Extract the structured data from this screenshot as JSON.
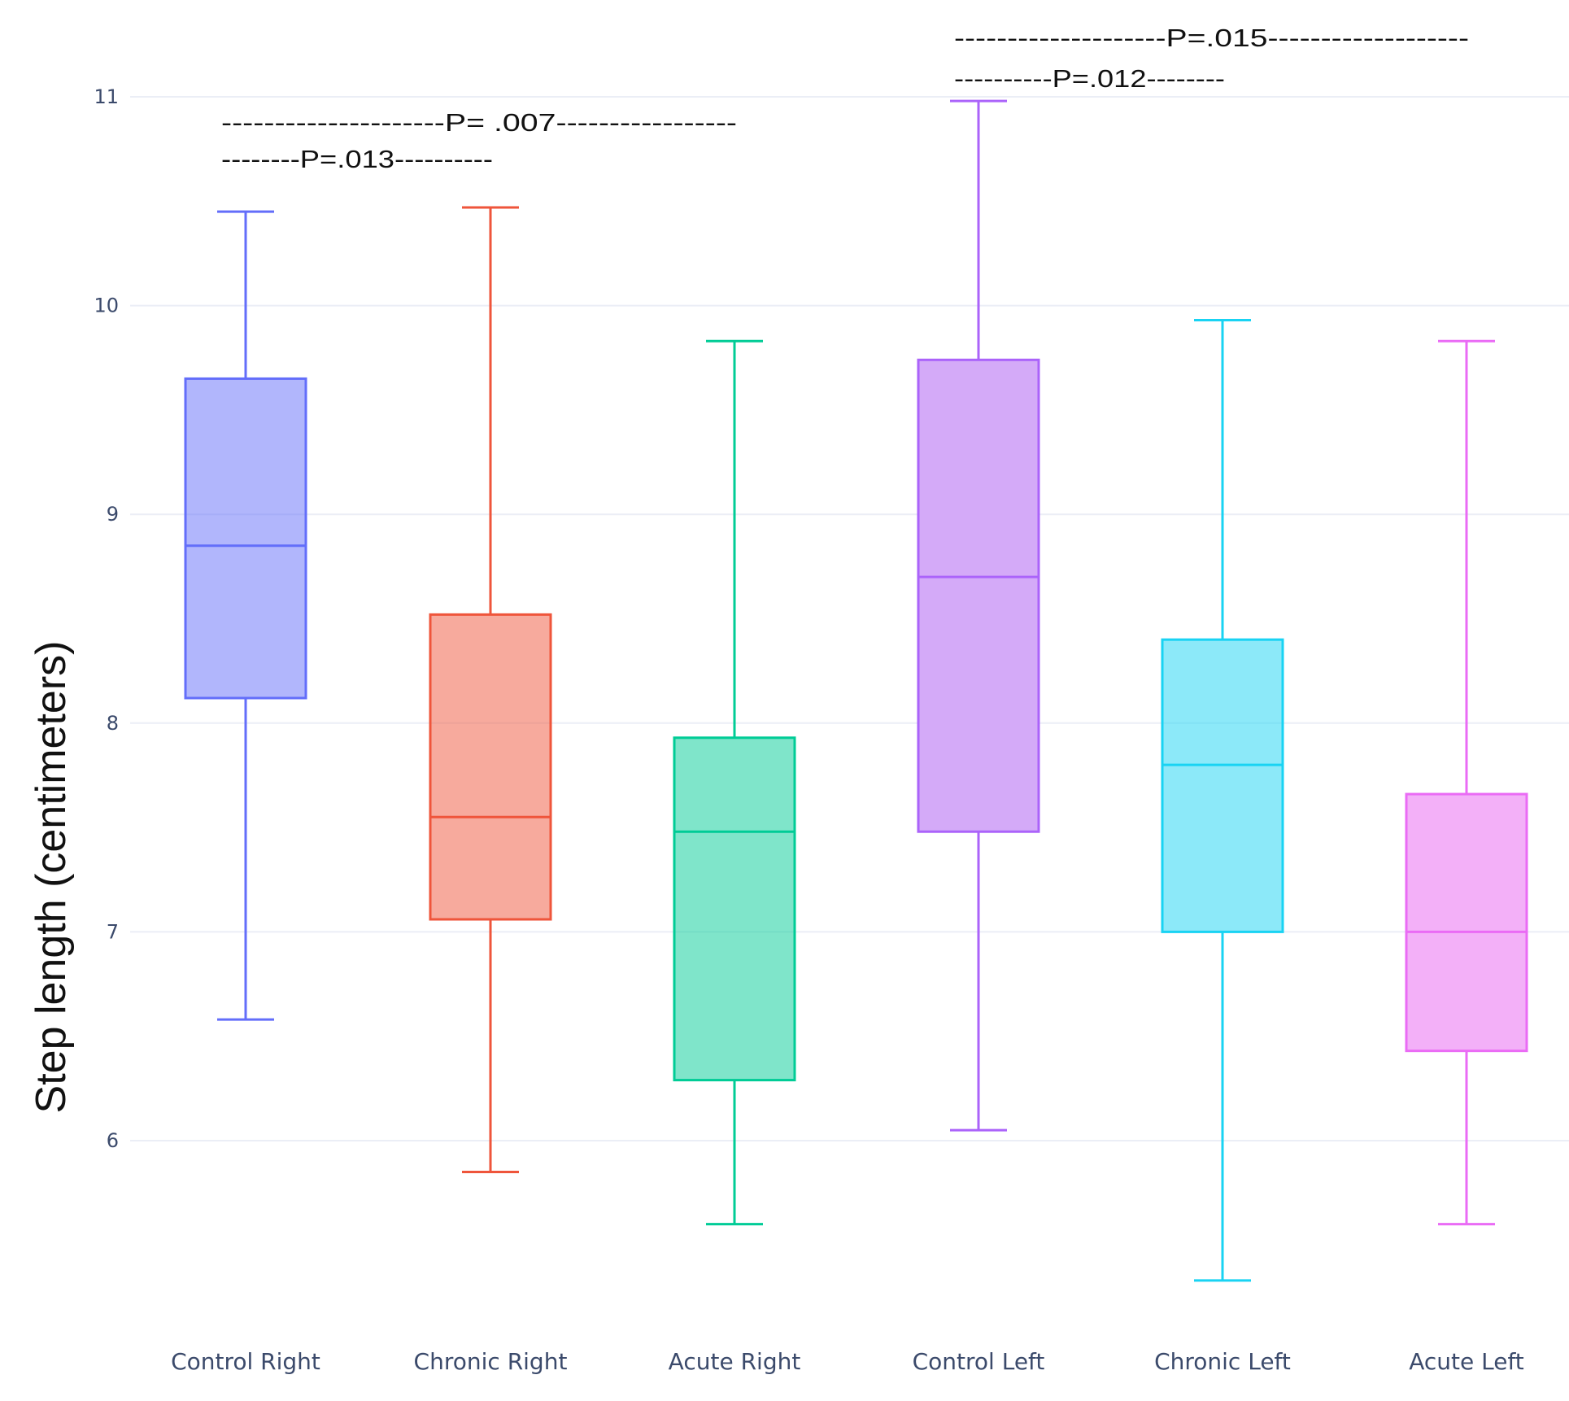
{
  "chart_data": {
    "type": "box",
    "title": "",
    "xlabel": "",
    "ylabel": "Step length (centimeters)",
    "ylim": [
      5.2,
      11.45
    ],
    "yticks": [
      6,
      7,
      8,
      9,
      10,
      11
    ],
    "grid": true,
    "categories": [
      "Control Right",
      "Chronic Right",
      "Acute Right",
      "Control Left",
      "Chronic Left",
      "Acute Left"
    ],
    "boxes": [
      {
        "name": "Control Right",
        "min": 6.58,
        "q1": 8.12,
        "median": 8.85,
        "q3": 9.65,
        "max": 10.45,
        "color": "#636efa"
      },
      {
        "name": "Chronic Right",
        "min": 5.85,
        "q1": 7.06,
        "median": 7.55,
        "q3": 8.52,
        "max": 10.47,
        "color": "#ef553b"
      },
      {
        "name": "Acute Right",
        "min": 5.6,
        "q1": 6.29,
        "median": 7.48,
        "q3": 7.93,
        "max": 9.83,
        "color": "#00cc96"
      },
      {
        "name": "Control Left",
        "min": 6.05,
        "q1": 7.48,
        "median": 8.7,
        "q3": 9.74,
        "max": 10.98,
        "color": "#ab63fa"
      },
      {
        "name": "Chronic Left",
        "min": 5.33,
        "q1": 7.0,
        "median": 7.8,
        "q3": 8.4,
        "max": 9.93,
        "color": "#19d3f3"
      },
      {
        "name": "Acute Left",
        "min": 5.6,
        "q1": 6.43,
        "median": 7.0,
        "q3": 7.66,
        "max": 9.83,
        "color": "#ff6692"
      }
    ],
    "annotations": [
      {
        "text": "--------------------P=.015-------------------",
        "from": "Control Left",
        "to": "Acute Left"
      },
      {
        "text": "----------P=.012--------",
        "from": "Control Left",
        "to": "Chronic Left"
      },
      {
        "text": "---------------------P= .007-----------------",
        "from": "Control Right",
        "to": "Acute Right"
      },
      {
        "text": "--------P=.013----------",
        "from": "Control Right",
        "to": "Chronic Right"
      }
    ]
  },
  "colors": {
    "control_left_fill": "#d4aaf8",
    "acute_left_stroke": "#ea6bf5",
    "acute_left_fill": "#f3b0f8"
  }
}
